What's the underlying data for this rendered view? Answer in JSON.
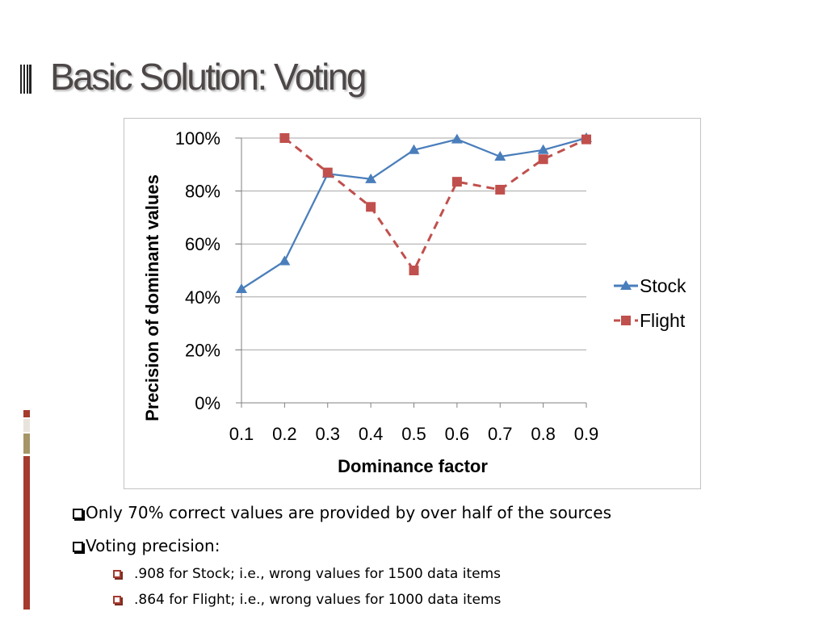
{
  "slide": {
    "title": "Basic Solution: Voting",
    "colors": {
      "title_text": "#4d4747",
      "accent_red": "#a53a2e",
      "accent_tan": "#a59568",
      "accent_light": "#e8e4dc"
    }
  },
  "chart_data": {
    "type": "line",
    "title": "",
    "xlabel": "Dominance factor",
    "ylabel": "Precision of dominant values",
    "categories": [
      "0.1",
      "0.2",
      "0.3",
      "0.4",
      "0.5",
      "0.6",
      "0.7",
      "0.8",
      "0.9"
    ],
    "ylim": [
      0,
      100
    ],
    "yticks": [
      0,
      20,
      40,
      60,
      80,
      100
    ],
    "ytick_labels": [
      "0%",
      "20%",
      "40%",
      "60%",
      "80%",
      "100%"
    ],
    "grid": true,
    "legend_position": "right",
    "series": [
      {
        "name": "Stock",
        "values": [
          43,
          53.5,
          86.5,
          84.5,
          95.5,
          99.5,
          93,
          95.5,
          100
        ],
        "color": "#4a7ebb",
        "marker": "triangle",
        "line_style": "solid"
      },
      {
        "name": "Flight",
        "values": [
          null,
          100,
          87,
          74,
          50,
          83.5,
          80.5,
          92,
          99.5
        ],
        "color": "#c0504d",
        "marker": "square",
        "line_style": "dashed"
      }
    ]
  },
  "bullets": {
    "level1": [
      "Only 70% correct values are provided by over half of the sources",
      "Voting precision:"
    ],
    "level2": [
      ".908 for Stock; i.e., wrong values for 1500 data items",
      ".864 for Flight; i.e., wrong values for 1000 data items"
    ]
  }
}
